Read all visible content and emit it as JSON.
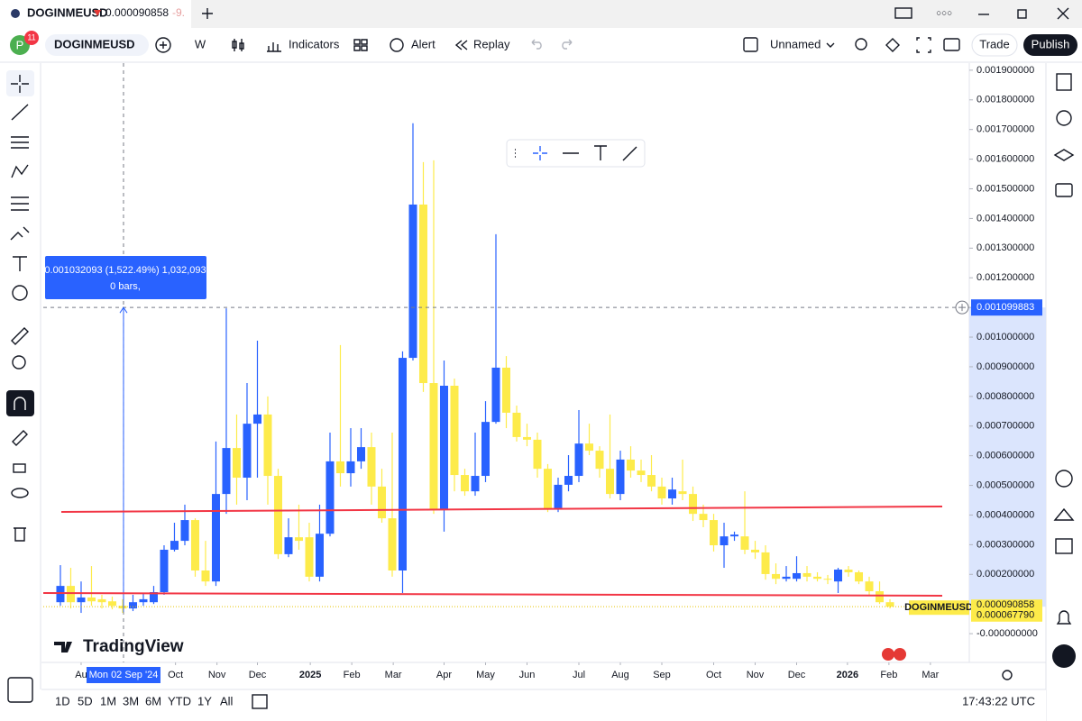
{
  "tab": {
    "symbol": "DOGINMEUSD",
    "price": "0.000090858",
    "change": "-9."
  },
  "toolbar": {
    "avatar": "P",
    "badge": "11",
    "symbol": "DOGINMEUSD",
    "interval": "W",
    "indicators": "Indicators",
    "alert": "Alert",
    "replay": "Replay",
    "layout": "Unnamed",
    "trade": "Trade",
    "publish": "Publish"
  },
  "chart_data": {
    "type": "candlestick",
    "watermark": "TradingView",
    "symbol_label": "DOGINMEUSD",
    "up_color": "#2962ff",
    "down_color": "#fdeb4a",
    "xlim": [
      -1.65,
      87.65
    ],
    "ylim": [
      -9.7e-05,
      0.001924
    ],
    "xticks": [
      {
        "value": 2.0,
        "label": "Au"
      },
      {
        "value": 11.1,
        "label": "Oct"
      },
      {
        "value": 15.1,
        "label": "Nov"
      },
      {
        "value": 19.0,
        "label": "Dec"
      },
      {
        "value": 24.1,
        "label": "2025"
      },
      {
        "value": 28.1,
        "label": "Feb"
      },
      {
        "value": 32.1,
        "label": "Mar"
      },
      {
        "value": 37.0,
        "label": "Apr"
      },
      {
        "value": 41.0,
        "label": "May"
      },
      {
        "value": 45.0,
        "label": "Jun"
      },
      {
        "value": 50.0,
        "label": "Jul"
      },
      {
        "value": 54.0,
        "label": "Aug"
      },
      {
        "value": 58.0,
        "label": "Sep"
      },
      {
        "value": 63.0,
        "label": "Oct"
      },
      {
        "value": 67.0,
        "label": "Nov"
      },
      {
        "value": 71.0,
        "label": "Dec"
      },
      {
        "value": 75.9,
        "label": "2026"
      },
      {
        "value": 79.9,
        "label": "Feb"
      },
      {
        "value": 83.9,
        "label": "Mar"
      }
    ],
    "yticks": [
      {
        "value": 0.0019,
        "label": "0.001900000"
      },
      {
        "value": 0.0018,
        "label": "0.001800000"
      },
      {
        "value": 0.0017,
        "label": "0.001700000"
      },
      {
        "value": 0.0016,
        "label": "0.001600000"
      },
      {
        "value": 0.0015,
        "label": "0.001500000"
      },
      {
        "value": 0.0014,
        "label": "0.001400000"
      },
      {
        "value": 0.0013,
        "label": "0.001300000"
      },
      {
        "value": 0.0012,
        "label": "0.001200000"
      },
      {
        "value": 0.0011,
        "label": "0.001100000"
      },
      {
        "value": 0.001,
        "label": "0.001000000"
      },
      {
        "value": 0.0009,
        "label": "0.000900000"
      },
      {
        "value": 0.0008,
        "label": "0.000800000"
      },
      {
        "value": 0.0007,
        "label": "0.000700000"
      },
      {
        "value": 0.0006,
        "label": "0.000600000"
      },
      {
        "value": 0.0005,
        "label": "0.000500000"
      },
      {
        "value": 0.0004,
        "label": "0.000400000"
      },
      {
        "value": 0.0003,
        "label": "0.000300000"
      },
      {
        "value": 0.0002,
        "label": "0.000200000"
      },
      {
        "value": 0,
        "label": "-0.000000000"
      }
    ],
    "open": [
      0.000106,
      0.000161,
      0.000106,
      0.000122,
      0.000116,
      0.000109,
      9.4e-05,
      8.5e-05,
      0.000106,
      0.000106,
      0.00014,
      0.000283,
      0.000313,
      0.000383,
      0.000213,
      0.000176,
      0.000471,
      0.000626,
      0.000526,
      0.000708,
      0.000739,
      0.000532,
      0.000268,
      0.000325,
      0.000325,
      0.000192,
      0.000337,
      0.000581,
      0.000541,
      0.000581,
      0.000629,
      0.000496,
      0.000389,
      0.000213,
      0.00093,
      0.001447,
      0.000845,
      0.00042,
      0.000836,
      0.000535,
      0.00048,
      0.000532,
      0.000714,
      0.000897,
      0.000745,
      0.000663,
      0.000654,
      0.000556,
      0.00042,
      0.000502,
      0.000532,
      0.000641,
      0.000617,
      0.000556,
      0.000471,
      0.000587,
      0.00055,
      0.000535,
      0.000496,
      0.000456,
      0.00048,
      0.000471,
      0.000404,
      0.000383,
      0.000298,
      0.000328,
      0.000328,
      0.000283,
      0.000274,
      0.000201,
      0.000185,
      0.000185,
      0.000204,
      0.000192,
      0.000185,
      0.000176,
      0.000216,
      0.000207,
      0.000176,
      0.000143,
      0.000106
    ],
    "high": [
      0.000231,
      0.000222,
      0.000176,
      0.000228,
      0.000131,
      0.000125,
      0.000116,
      0.000131,
      0.000137,
      0.000161,
      0.000298,
      0.000374,
      0.000435,
      0.000389,
      0.000313,
      0.000648,
      0.001097,
      0.000739,
      0.000845,
      0.000988,
      0.0008,
      0.000556,
      0.000389,
      0.000435,
      0.000374,
      0.000435,
      0.000678,
      0.000973,
      0.000693,
      0.000693,
      0.000678,
      0.000556,
      0.000678,
      0.000952,
      0.001721,
      0.00159,
      0.001596,
      0.000921,
      0.00086,
      0.000556,
      0.000678,
      0.000784,
      0.001347,
      0.000936,
      0.000769,
      0.000708,
      0.000678,
      0.000572,
      0.000526,
      0.000602,
      0.000754,
      0.000708,
      0.000632,
      0.000739,
      0.000617,
      0.000632,
      0.000587,
      0.000602,
      0.000526,
      0.000526,
      0.000587,
      0.000496,
      0.000435,
      0.000404,
      0.000374,
      0.000344,
      0.00048,
      0.000313,
      0.000298,
      0.000237,
      0.000228,
      0.000261,
      0.000228,
      0.000207,
      0.000198,
      0.000222,
      0.000228,
      0.000213,
      0.000192,
      0.000176,
      0.000116
    ],
    "low": [
      9.4e-05,
      8.5e-05,
      7e-05,
      9.4e-05,
      8.5e-05,
      8.2e-05,
      7e-05,
      7.6e-05,
      9.4e-05,
      0.0001,
      0.000131,
      0.000277,
      0.000298,
      0.000192,
      0.000161,
      0.000161,
      0.000404,
      0.000435,
      0.00045,
      0.000526,
      0.000435,
      0.000252,
      0.000258,
      0.000283,
      0.000176,
      0.000176,
      0.000328,
      0.000496,
      0.000496,
      0.000556,
      0.000435,
      0.000374,
      0.000192,
      0.000137,
      0.000921,
      0.000815,
      0.000404,
      0.000344,
      0.00048,
      0.000465,
      0.000465,
      0.000511,
      0.000708,
      0.000693,
      0.000648,
      0.000632,
      0.000526,
      0.00041,
      0.00041,
      0.00048,
      0.000511,
      0.000602,
      0.000526,
      0.000456,
      0.00045,
      0.000526,
      0.000511,
      0.00048,
      0.000435,
      0.000435,
      0.00045,
      0.00038,
      0.000359,
      0.000277,
      0.000222,
      0.000313,
      0.000268,
      0.000252,
      0.000182,
      0.000167,
      0.000176,
      0.000176,
      0.000176,
      0.000176,
      0.000167,
      0.000137,
      0.000192,
      0.000167,
      0.000131,
      0.0001,
      8.5e-05
    ],
    "close": [
      0.000161,
      0.000106,
      0.000122,
      0.000109,
      0.000106,
      9.4e-05,
      8.5e-05,
      0.000106,
      0.000116,
      0.00014,
      0.000283,
      0.000313,
      0.000383,
      0.000213,
      0.000176,
      0.000471,
      0.000626,
      0.000526,
      0.000708,
      0.000739,
      0.000532,
      0.000268,
      0.000325,
      0.000313,
      0.000192,
      0.000337,
      0.000581,
      0.000541,
      0.000581,
      0.000629,
      0.000496,
      0.000389,
      0.000213,
      0.00093,
      0.001447,
      0.000845,
      0.00042,
      0.000836,
      0.000535,
      0.00048,
      0.000532,
      0.000714,
      0.000897,
      0.000745,
      0.000663,
      0.000654,
      0.000556,
      0.00042,
      0.000502,
      0.000532,
      0.000641,
      0.000617,
      0.000556,
      0.000471,
      0.000587,
      0.00055,
      0.000535,
      0.000496,
      0.000456,
      0.000486,
      0.000471,
      0.000404,
      0.000383,
      0.000298,
      0.000328,
      0.000334,
      0.000283,
      0.000274,
      0.000201,
      0.000185,
      0.000192,
      0.000204,
      0.000192,
      0.000185,
      0.000182,
      0.000216,
      0.000207,
      0.000176,
      0.000143,
      0.000106,
      9.1e-05
    ],
    "last_price": 9.0858e-05,
    "close_price": {
      "value": 6.779e-05,
      "label": "0.000067790"
    },
    "crosshair": {
      "price": 0.001099883,
      "date": "Mon 02 Sep '24"
    },
    "measure": {
      "text": "0.001032093 (1,522.49%) 1,032,093",
      "bars": "0 bars,"
    }
  },
  "bottom_bar": {
    "ranges": [
      "1D",
      "5D",
      "1M",
      "3M",
      "6M",
      "YTD",
      "1Y",
      "All"
    ],
    "clock": "17:43:22 UTC"
  }
}
